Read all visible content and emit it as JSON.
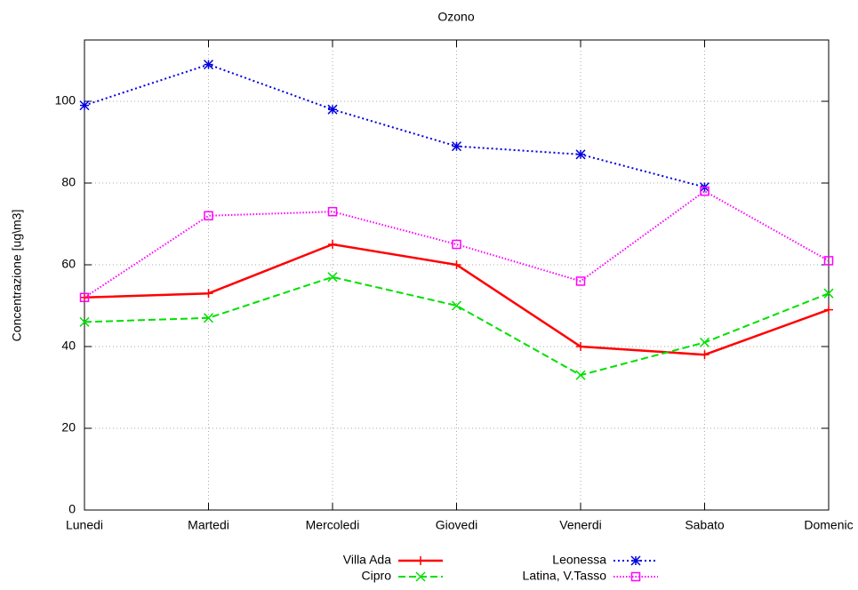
{
  "chart_data": {
    "type": "line",
    "title": "Ozono",
    "y_label": "Concentrazione [ug\\m3]",
    "categories": [
      "Lunedi",
      "Martedi",
      "Mercoledi",
      "Giovedi",
      "Venerdi",
      "Sabato",
      "Domenic"
    ],
    "series": [
      {
        "name": "Villa Ada",
        "color": "#ff0000",
        "marker": "plus",
        "dash": "solid",
        "values": [
          52,
          53,
          65,
          60,
          40,
          38,
          49
        ]
      },
      {
        "name": "Cipro",
        "color": "#00e000",
        "marker": "cross",
        "dash": "dashed",
        "values": [
          46,
          47,
          57,
          50,
          33,
          41,
          53
        ]
      },
      {
        "name": "Leonessa",
        "color": "#0000e0",
        "marker": "star",
        "dash": "dotted",
        "values": [
          99,
          109,
          98,
          89,
          87,
          79,
          null
        ]
      },
      {
        "name": "Latina, V.Tasso",
        "color": "#ff00ff",
        "marker": "square",
        "dash": "fine-dotted",
        "values": [
          52,
          72,
          73,
          65,
          56,
          78,
          61
        ]
      }
    ],
    "ylim": [
      0,
      115
    ],
    "yticks": [
      0,
      20,
      40,
      60,
      80,
      100
    ],
    "grid": true
  }
}
